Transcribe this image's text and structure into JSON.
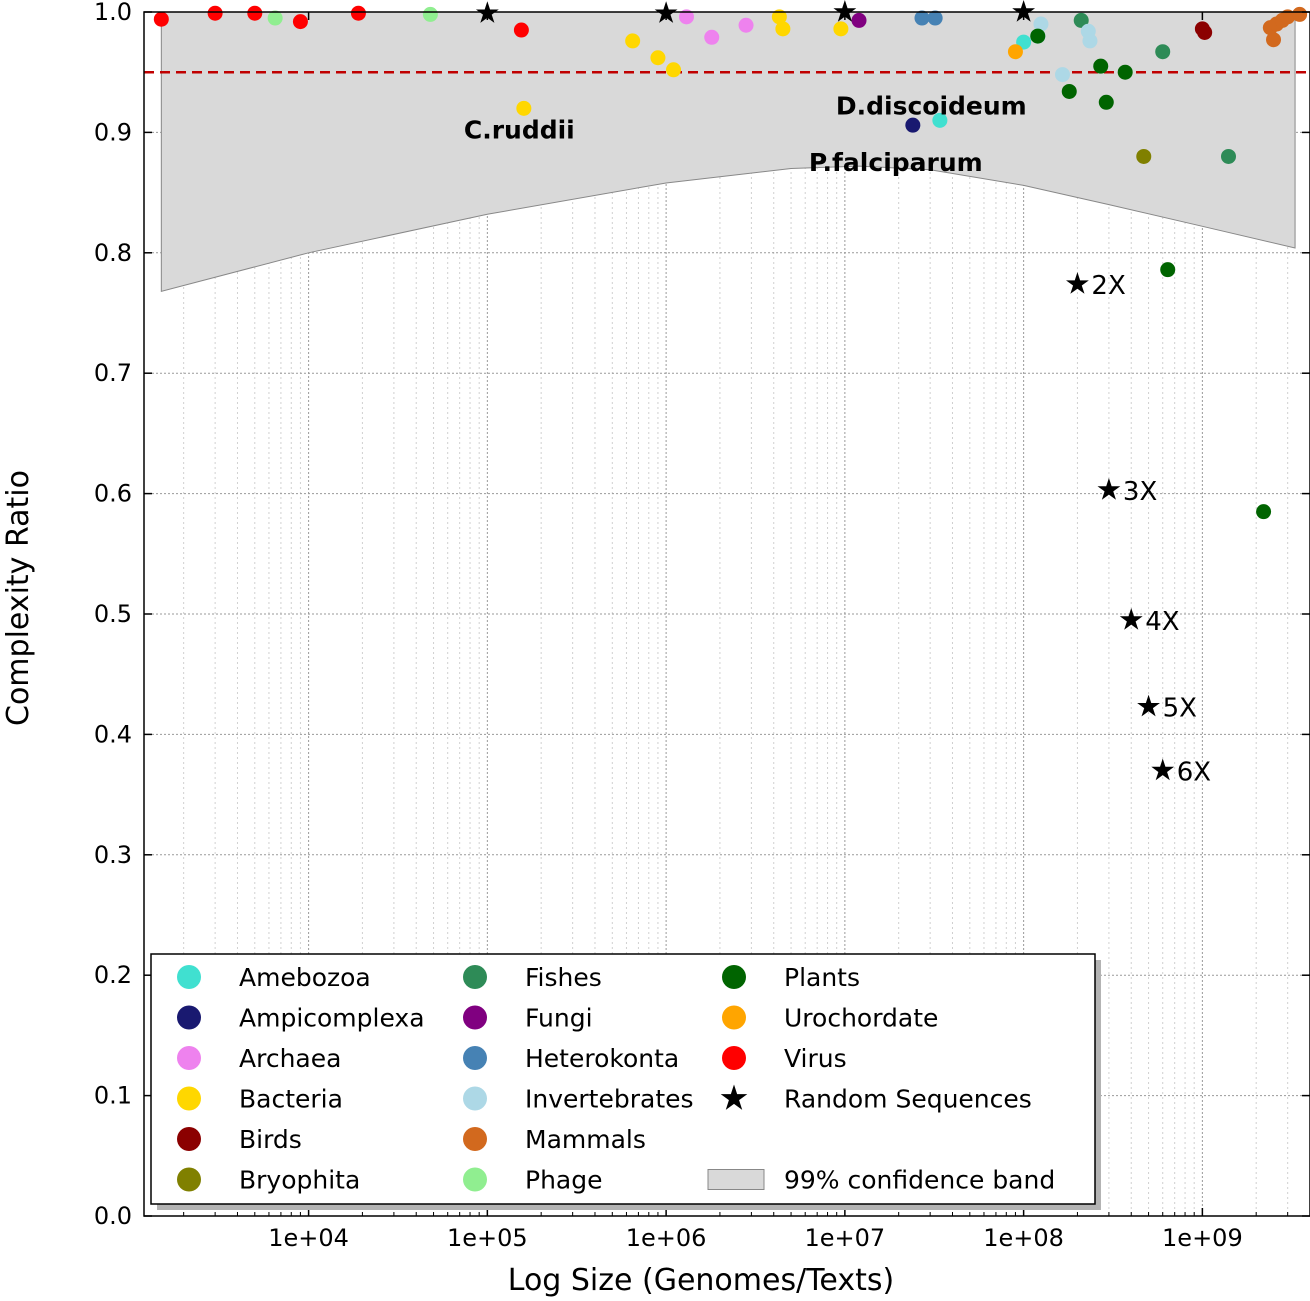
{
  "chart_data": {
    "type": "scatter",
    "xlabel": "Log Size (Genomes/Texts)",
    "ylabel": "Complexity Ratio",
    "xscale": "log",
    "xlim": [
      1200,
      4000000000
    ],
    "ylim": [
      0,
      1
    ],
    "xticks": [
      {
        "value": 10000,
        "label": "1e+04"
      },
      {
        "value": 100000,
        "label": "1e+05"
      },
      {
        "value": 1000000,
        "label": "1e+06"
      },
      {
        "value": 10000000,
        "label": "1e+07"
      },
      {
        "value": 100000000,
        "label": "1e+08"
      },
      {
        "value": 1000000000,
        "label": "1e+09"
      }
    ],
    "yticks": [
      {
        "value": 0.0,
        "label": "0.0"
      },
      {
        "value": 0.1,
        "label": "0.1"
      },
      {
        "value": 0.2,
        "label": "0.2"
      },
      {
        "value": 0.3,
        "label": "0.3"
      },
      {
        "value": 0.4,
        "label": "0.4"
      },
      {
        "value": 0.5,
        "label": "0.5"
      },
      {
        "value": 0.6,
        "label": "0.6"
      },
      {
        "value": 0.7,
        "label": "0.7"
      },
      {
        "value": 0.8,
        "label": "0.8"
      },
      {
        "value": 0.9,
        "label": "0.9"
      },
      {
        "value": 1.0,
        "label": "1.0"
      }
    ],
    "grid": true,
    "legend_position": "lower-left",
    "threshold": {
      "y": 0.95,
      "color": "#c00000",
      "style": "dashed"
    },
    "confidence_band": {
      "label": "99% confidence band",
      "color": "#d9d9d9",
      "upper": 1.0,
      "lower": [
        [
          1500,
          0.768
        ],
        [
          10000,
          0.8
        ],
        [
          100000,
          0.832
        ],
        [
          1000000,
          0.858
        ],
        [
          5000000,
          0.87
        ],
        [
          12000000,
          0.872
        ],
        [
          30000000,
          0.869
        ],
        [
          100000000,
          0.856
        ],
        [
          300000000,
          0.84
        ],
        [
          1000000000,
          0.822
        ],
        [
          3300000000,
          0.804
        ]
      ]
    },
    "series": [
      {
        "name": "Amebozoa",
        "color": "#40e0d0",
        "marker": "circle",
        "points": [
          [
            34000000,
            0.91
          ],
          [
            100000000,
            0.975
          ],
          [
            120000000,
            0.98
          ]
        ]
      },
      {
        "name": "Ampicomplexa",
        "color": "#191970",
        "marker": "circle",
        "points": [
          [
            24000000,
            0.906
          ]
        ]
      },
      {
        "name": "Archaea",
        "color": "#ee82ee",
        "marker": "circle",
        "points": [
          [
            1300000,
            0.996
          ],
          [
            1800000,
            0.979
          ],
          [
            2800000,
            0.989
          ]
        ]
      },
      {
        "name": "Bacteria",
        "color": "#ffd700",
        "marker": "circle",
        "points": [
          [
            160000,
            0.92
          ],
          [
            650000,
            0.976
          ],
          [
            900000,
            0.962
          ],
          [
            1100000,
            0.952
          ],
          [
            4300000,
            0.996
          ],
          [
            4500000,
            0.986
          ],
          [
            9500000,
            0.986
          ]
        ]
      },
      {
        "name": "Birds",
        "color": "#8b0000",
        "marker": "circle",
        "points": [
          [
            1000000000,
            0.986
          ],
          [
            1030000000,
            0.983
          ]
        ]
      },
      {
        "name": "Bryophita",
        "color": "#808000",
        "marker": "circle",
        "points": [
          [
            470000000,
            0.88
          ]
        ]
      },
      {
        "name": "Fishes",
        "color": "#2e8b57",
        "marker": "circle",
        "points": [
          [
            210000000,
            0.993
          ],
          [
            600000000,
            0.967
          ],
          [
            1400000000,
            0.88
          ]
        ]
      },
      {
        "name": "Fungi",
        "color": "#800080",
        "marker": "circle",
        "points": [
          [
            12000000,
            0.993
          ]
        ]
      },
      {
        "name": "Heterokonta",
        "color": "#4682b4",
        "marker": "circle",
        "points": [
          [
            27000000,
            0.995
          ],
          [
            32000000,
            0.995
          ]
        ]
      },
      {
        "name": "Invertebrates",
        "color": "#add8e6",
        "marker": "circle",
        "points": [
          [
            125000000,
            0.99
          ],
          [
            165000000,
            0.948
          ],
          [
            230000000,
            0.984
          ],
          [
            235000000,
            0.976
          ]
        ]
      },
      {
        "name": "Mammals",
        "color": "#d2691e",
        "marker": "circle",
        "points": [
          [
            2400000000,
            0.987
          ],
          [
            2500000000,
            0.977
          ],
          [
            2600000000,
            0.99
          ],
          [
            2800000000,
            0.993
          ],
          [
            3000000000,
            0.996
          ],
          [
            3500000000,
            0.998
          ]
        ]
      },
      {
        "name": "Phage",
        "color": "#90ee90",
        "marker": "circle",
        "points": [
          [
            6500,
            0.995
          ],
          [
            48000,
            0.998
          ]
        ]
      },
      {
        "name": "Plants",
        "color": "#006400",
        "marker": "circle",
        "points": [
          [
            120000000,
            0.98
          ],
          [
            180000000,
            0.934
          ],
          [
            270000000,
            0.955
          ],
          [
            290000000,
            0.925
          ],
          [
            370000000,
            0.95
          ],
          [
            640000000,
            0.786
          ],
          [
            2200000000,
            0.585
          ]
        ]
      },
      {
        "name": "Urochordate",
        "color": "#ffa500",
        "marker": "circle",
        "points": [
          [
            90000000,
            0.967
          ]
        ]
      },
      {
        "name": "Virus",
        "color": "#ff0000",
        "marker": "circle",
        "points": [
          [
            1500,
            0.994
          ],
          [
            3000,
            0.999
          ],
          [
            5000,
            0.999
          ],
          [
            9000,
            0.992
          ],
          [
            19000,
            0.999
          ],
          [
            155000,
            0.985
          ]
        ]
      },
      {
        "name": "Random Sequences",
        "color": "#000000",
        "marker": "star",
        "points": [
          [
            100000,
            0.999
          ],
          [
            1000000,
            0.999
          ],
          [
            10000000,
            1.0
          ],
          [
            100000000,
            1.0
          ],
          [
            200000000,
            0.774
          ],
          [
            300000000,
            0.603
          ],
          [
            400000000,
            0.495
          ],
          [
            500000000,
            0.423
          ],
          [
            600000000,
            0.37
          ]
        ]
      }
    ],
    "annotations": [
      {
        "text": "C.ruddii",
        "x": 160000,
        "y": 0.92,
        "bold": true
      },
      {
        "text": "D.discoideum",
        "x": 34000000,
        "y": 0.91,
        "bold": true
      },
      {
        "text": "P.falciparum",
        "x": 24000000,
        "y": 0.906,
        "bold": true
      },
      {
        "text": "2X",
        "x": 200000000,
        "y": 0.774,
        "bold": false
      },
      {
        "text": "3X",
        "x": 300000000,
        "y": 0.603,
        "bold": false
      },
      {
        "text": "4X",
        "x": 400000000,
        "y": 0.495,
        "bold": false
      },
      {
        "text": "5X",
        "x": 500000000,
        "y": 0.423,
        "bold": false
      },
      {
        "text": "6X",
        "x": 600000000,
        "y": 0.37,
        "bold": false
      }
    ]
  }
}
